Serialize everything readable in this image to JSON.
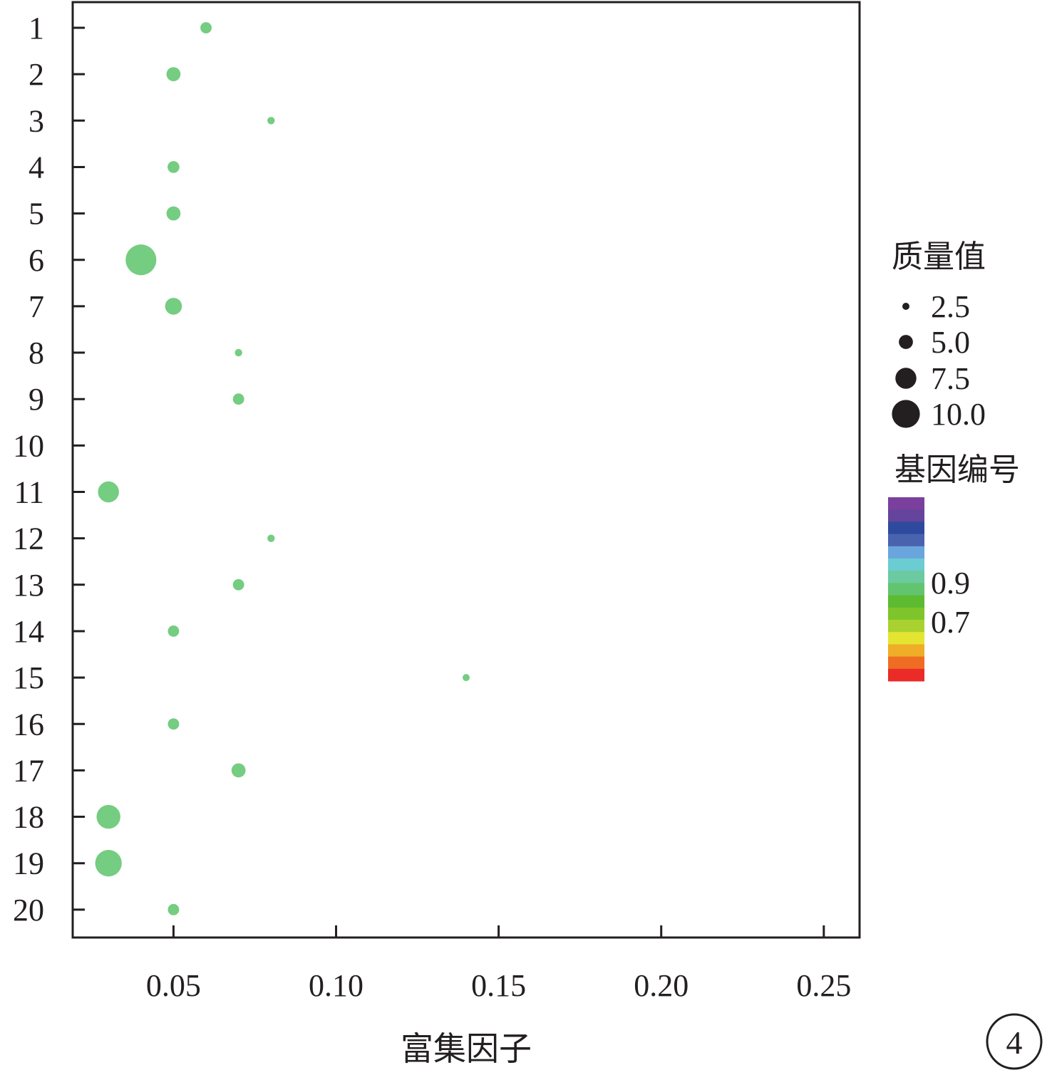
{
  "chart_data": {
    "type": "scatter",
    "title": "",
    "xlabel": "富集因子",
    "ylabel": "",
    "xlim": [
      0.019,
      0.261
    ],
    "x_ticks": [
      0.05,
      0.1,
      0.15,
      0.2,
      0.25
    ],
    "x_tick_labels": [
      "0.05",
      "0.10",
      "0.15",
      "0.20",
      "0.25"
    ],
    "categories": [
      "1",
      "2",
      "3",
      "4",
      "5",
      "6",
      "7",
      "8",
      "9",
      "10",
      "11",
      "12",
      "13",
      "14",
      "15",
      "16",
      "17",
      "18",
      "19",
      "20"
    ],
    "grid": false,
    "point_color": "#74cd81",
    "points": [
      {
        "category": "1",
        "x": 0.06,
        "size": 4.0
      },
      {
        "category": "2",
        "x": 0.05,
        "size": 5.0
      },
      {
        "category": "3",
        "x": 0.08,
        "size": 2.6
      },
      {
        "category": "4",
        "x": 0.05,
        "size": 4.2
      },
      {
        "category": "5",
        "x": 0.05,
        "size": 5.0
      },
      {
        "category": "6",
        "x": 0.04,
        "size": 11.0
      },
      {
        "category": "7",
        "x": 0.05,
        "size": 6.0
      },
      {
        "category": "8",
        "x": 0.07,
        "size": 2.6
      },
      {
        "category": "9",
        "x": 0.07,
        "size": 4.0
      },
      {
        "category": "11",
        "x": 0.03,
        "size": 7.5
      },
      {
        "category": "12",
        "x": 0.08,
        "size": 2.6
      },
      {
        "category": "13",
        "x": 0.07,
        "size": 4.0
      },
      {
        "category": "14",
        "x": 0.05,
        "size": 4.0
      },
      {
        "category": "15",
        "x": 0.14,
        "size": 2.5
      },
      {
        "category": "16",
        "x": 0.05,
        "size": 4.0
      },
      {
        "category": "17",
        "x": 0.07,
        "size": 5.0
      },
      {
        "category": "18",
        "x": 0.03,
        "size": 8.5
      },
      {
        "category": "19",
        "x": 0.03,
        "size": 9.5
      },
      {
        "category": "20",
        "x": 0.05,
        "size": 4.0
      }
    ],
    "size_legend": {
      "title": "质量值",
      "values": [
        2.5,
        5.0,
        7.5,
        10.0
      ],
      "labels": [
        "2.5",
        "5.0",
        "7.5",
        "10.0"
      ],
      "color": "#231f20"
    },
    "color_legend": {
      "title": "基因编号",
      "colors": [
        "#7b3f9e",
        "#64449c",
        "#2e4a9e",
        "#4a63af",
        "#6aa6dd",
        "#6bcdd2",
        "#6ccaa0",
        "#63c46f",
        "#5cbb31",
        "#7ec52b",
        "#a9d231",
        "#e4e530",
        "#efad28",
        "#ef6d23",
        "#ea2b28"
      ],
      "tick_labels": [
        "0.9",
        "0.7"
      ],
      "tick_values": [
        0.9,
        0.7
      ]
    },
    "legend_position": "right",
    "panel_label": "4"
  }
}
